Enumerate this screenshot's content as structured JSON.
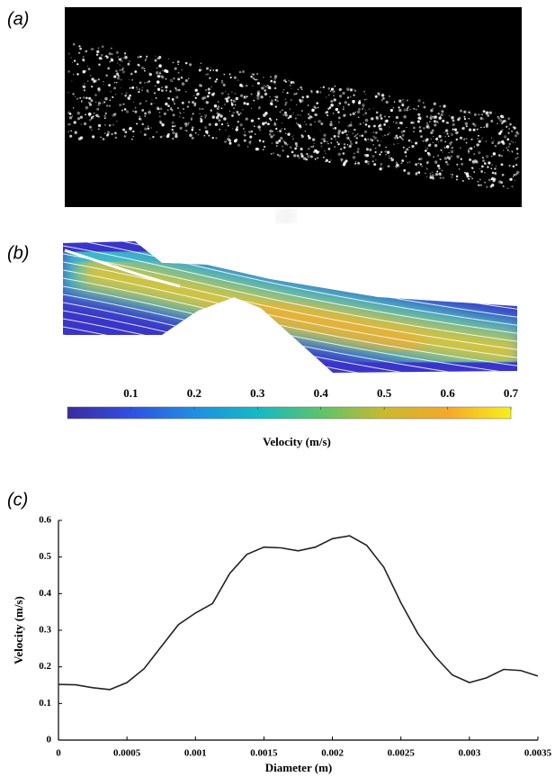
{
  "panel_labels": [
    "(a)",
    "(b)",
    "(c)"
  ],
  "chart_data": [
    {
      "type": "colorbar",
      "xlabel": "Velocity (m/s)",
      "xlim": [
        0,
        0.7
      ],
      "xticks": [
        0.1,
        0.2,
        0.3,
        0.4,
        0.5,
        0.6,
        0.7
      ],
      "colors": [
        "#3b2b9e",
        "#3050e0",
        "#1f8fe0",
        "#16b8c4",
        "#5cc46a",
        "#c9b92f",
        "#f5a82a",
        "#f6f01c"
      ]
    },
    {
      "type": "line",
      "xlabel": "Diameter (m)",
      "ylabel": "Velocity (m/s)",
      "color": "#222222",
      "xlim": [
        0,
        0.0035
      ],
      "ylim": [
        0,
        0.6
      ],
      "xticks": [
        0,
        0.0005,
        0.001,
        0.0015,
        0.002,
        0.0025,
        0.003,
        0.0035
      ],
      "yticks": [
        0,
        0.1,
        0.2,
        0.3,
        0.4,
        0.5,
        0.6
      ],
      "x": [
        0,
        0.000125,
        0.00025,
        0.000375,
        0.0005,
        0.000625,
        0.00075,
        0.000875,
        0.001,
        0.001125,
        0.00125,
        0.001375,
        0.0015,
        0.001625,
        0.00175,
        0.001875,
        0.002,
        0.002125,
        0.00225,
        0.002375,
        0.0025,
        0.002625,
        0.00275,
        0.002875,
        0.003,
        0.003125,
        0.00325,
        0.003375,
        0.0035
      ],
      "values": [
        0.152,
        0.151,
        0.143,
        0.138,
        0.157,
        0.195,
        0.255,
        0.315,
        0.347,
        0.373,
        0.455,
        0.507,
        0.527,
        0.525,
        0.517,
        0.527,
        0.55,
        0.558,
        0.532,
        0.472,
        0.375,
        0.29,
        0.228,
        0.178,
        0.157,
        0.17,
        0.193,
        0.19,
        0.175
      ]
    }
  ]
}
